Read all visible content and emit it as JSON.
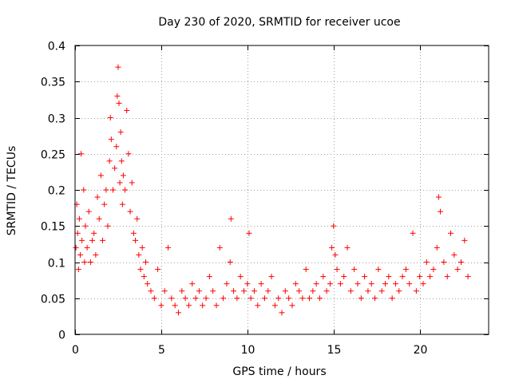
{
  "chart_data": {
    "type": "scatter",
    "title": "Day 230 of 2020, SRMTID for receiver ucoe",
    "xlabel": "GPS time / hours",
    "ylabel": "SRMTID / TECUs",
    "xlim": [
      0,
      24
    ],
    "ylim": [
      0,
      0.4
    ],
    "xticks": [
      0,
      5,
      10,
      15,
      20
    ],
    "xtick_labels": [
      "0",
      "5",
      "10",
      "15",
      "20"
    ],
    "yticks": [
      0,
      0.05,
      0.1,
      0.15,
      0.2,
      0.25,
      0.3,
      0.35,
      0.4
    ],
    "ytick_labels": [
      "0",
      "0.05",
      "0.1",
      "0.15",
      "0.2",
      "0.25",
      "0.3",
      "0.35",
      "0.4"
    ],
    "grid": true,
    "marker": "+",
    "color": "#ff0000",
    "series": [
      {
        "name": "SRMTID",
        "x": [
          0.05,
          0.1,
          0.15,
          0.2,
          0.25,
          0.3,
          0.35,
          0.4,
          0.5,
          0.55,
          0.6,
          0.7,
          0.8,
          0.9,
          1.0,
          1.1,
          1.2,
          1.3,
          1.4,
          1.5,
          1.6,
          1.7,
          1.8,
          1.9,
          2.0,
          2.05,
          2.1,
          2.2,
          2.3,
          2.4,
          2.45,
          2.5,
          2.55,
          2.6,
          2.65,
          2.7,
          2.75,
          2.8,
          2.9,
          3.0,
          3.1,
          3.2,
          3.3,
          3.4,
          3.5,
          3.6,
          3.7,
          3.8,
          3.9,
          4.0,
          4.1,
          4.2,
          4.4,
          4.6,
          4.8,
          5.0,
          5.2,
          5.4,
          5.6,
          5.8,
          6.0,
          6.2,
          6.4,
          6.6,
          6.8,
          7.0,
          7.2,
          7.4,
          7.6,
          7.8,
          8.0,
          8.2,
          8.4,
          8.6,
          8.8,
          9.0,
          9.05,
          9.2,
          9.4,
          9.6,
          9.8,
          10.0,
          10.1,
          10.2,
          10.4,
          10.6,
          10.8,
          11.0,
          11.2,
          11.4,
          11.6,
          11.8,
          12.0,
          12.2,
          12.4,
          12.6,
          12.8,
          13.0,
          13.2,
          13.4,
          13.6,
          13.8,
          14.0,
          14.2,
          14.4,
          14.6,
          14.8,
          14.9,
          15.0,
          15.1,
          15.2,
          15.4,
          15.6,
          15.8,
          16.0,
          16.2,
          16.4,
          16.6,
          16.8,
          17.0,
          17.2,
          17.4,
          17.6,
          17.8,
          18.0,
          18.2,
          18.4,
          18.6,
          18.8,
          19.0,
          19.2,
          19.4,
          19.6,
          19.8,
          20.0,
          20.2,
          20.4,
          20.6,
          20.8,
          21.0,
          21.1,
          21.2,
          21.4,
          21.6,
          21.8,
          22.0,
          22.2,
          22.4,
          22.6,
          22.8
        ],
        "values": [
          0.12,
          0.18,
          0.14,
          0.09,
          0.16,
          0.11,
          0.25,
          0.13,
          0.2,
          0.1,
          0.15,
          0.12,
          0.17,
          0.1,
          0.13,
          0.14,
          0.11,
          0.19,
          0.16,
          0.22,
          0.13,
          0.18,
          0.2,
          0.15,
          0.24,
          0.3,
          0.27,
          0.2,
          0.23,
          0.26,
          0.33,
          0.37,
          0.32,
          0.21,
          0.28,
          0.24,
          0.18,
          0.22,
          0.2,
          0.31,
          0.25,
          0.17,
          0.21,
          0.14,
          0.13,
          0.16,
          0.11,
          0.09,
          0.12,
          0.08,
          0.1,
          0.07,
          0.06,
          0.05,
          0.09,
          0.04,
          0.06,
          0.12,
          0.05,
          0.04,
          0.03,
          0.06,
          0.05,
          0.04,
          0.07,
          0.05,
          0.06,
          0.04,
          0.05,
          0.08,
          0.06,
          0.04,
          0.12,
          0.05,
          0.07,
          0.1,
          0.16,
          0.06,
          0.05,
          0.08,
          0.06,
          0.07,
          0.14,
          0.05,
          0.06,
          0.04,
          0.07,
          0.05,
          0.06,
          0.08,
          0.04,
          0.05,
          0.03,
          0.06,
          0.05,
          0.04,
          0.07,
          0.06,
          0.05,
          0.09,
          0.05,
          0.06,
          0.07,
          0.05,
          0.08,
          0.06,
          0.07,
          0.12,
          0.15,
          0.11,
          0.09,
          0.07,
          0.08,
          0.12,
          0.06,
          0.09,
          0.07,
          0.05,
          0.08,
          0.06,
          0.07,
          0.05,
          0.09,
          0.06,
          0.07,
          0.08,
          0.05,
          0.07,
          0.06,
          0.08,
          0.09,
          0.07,
          0.14,
          0.06,
          0.08,
          0.07,
          0.1,
          0.08,
          0.09,
          0.12,
          0.19,
          0.17,
          0.1,
          0.08,
          0.14,
          0.11,
          0.09,
          0.1,
          0.13,
          0.08
        ]
      }
    ]
  }
}
